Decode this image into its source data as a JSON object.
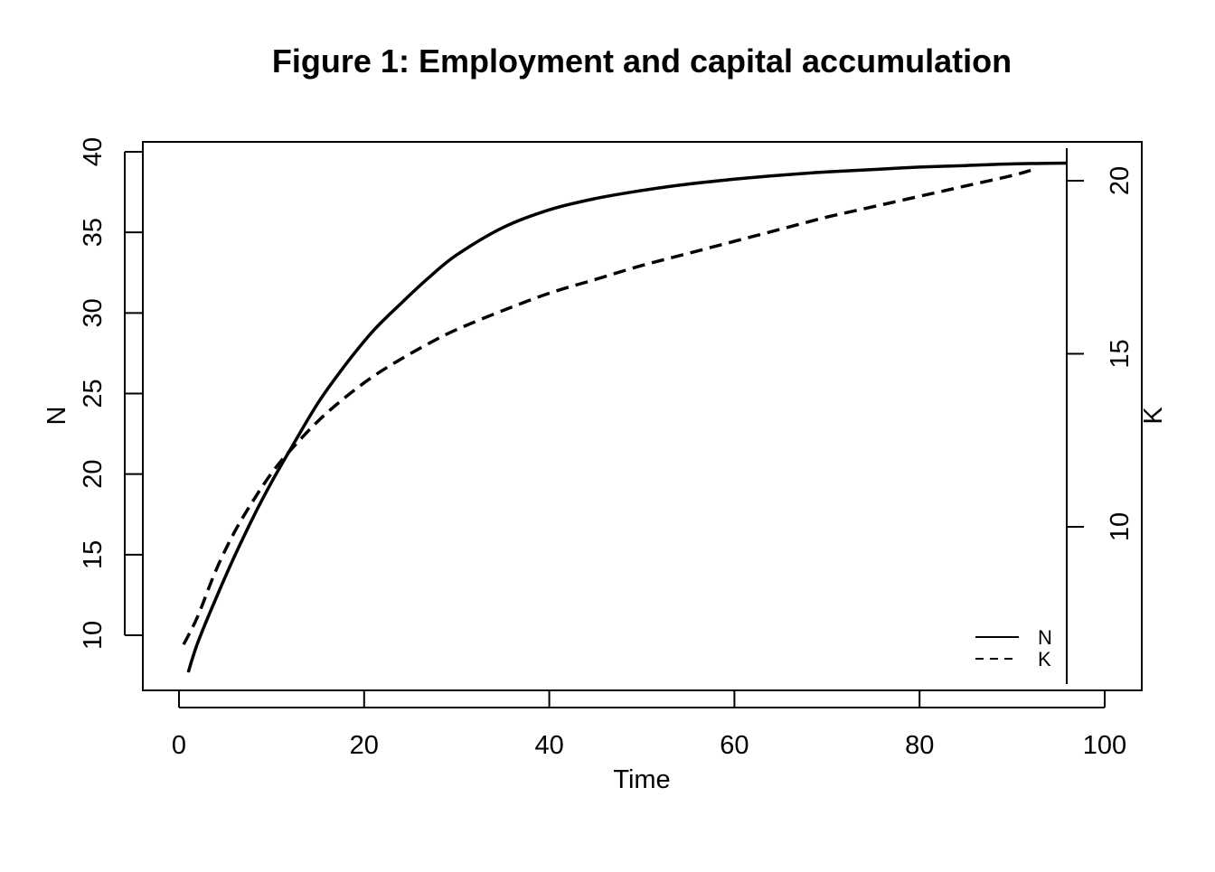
{
  "chart_data": {
    "type": "line",
    "title": "Figure 1: Employment and capital accumulation",
    "xlabel": "Time",
    "ylabel": "N",
    "y2label": "K",
    "xlim": [
      0,
      100
    ],
    "ylim": [
      7,
      40.5
    ],
    "y2lim": [
      6,
      21
    ],
    "x_ticks": [
      "0",
      "20",
      "40",
      "60",
      "80",
      "100"
    ],
    "y_ticks": [
      "10",
      "15",
      "20",
      "25",
      "30",
      "35",
      "40"
    ],
    "y2_ticks": [
      "10",
      "15",
      "20"
    ],
    "grid": false,
    "legend_position": "bottom-right",
    "series": [
      {
        "name": "N",
        "axis": "left",
        "line_style": "solid",
        "x": [
          1,
          2,
          4,
          6,
          8,
          10,
          12,
          15,
          18,
          21,
          24,
          27,
          30,
          35,
          40,
          45,
          50,
          55,
          60,
          65,
          70,
          75,
          80,
          85,
          90,
          96
        ],
        "y": [
          7.7,
          9.5,
          12.3,
          14.9,
          17.3,
          19.5,
          21.5,
          24.4,
          26.8,
          28.9,
          30.6,
          32.2,
          33.6,
          35.3,
          36.4,
          37.1,
          37.6,
          38.0,
          38.3,
          38.55,
          38.75,
          38.9,
          39.05,
          39.15,
          39.25,
          39.3
        ]
      },
      {
        "name": "K",
        "axis": "right",
        "line_style": "dashed",
        "x": [
          0.5,
          2,
          4,
          6,
          8,
          10,
          12,
          15,
          18,
          21,
          24,
          27,
          30,
          35,
          40,
          45,
          50,
          55,
          60,
          65,
          70,
          75,
          80,
          85,
          90,
          92
        ],
        "y": [
          6.6,
          7.4,
          8.75,
          9.85,
          10.75,
          11.55,
          12.2,
          13.05,
          13.75,
          14.35,
          14.85,
          15.3,
          15.7,
          16.25,
          16.75,
          17.15,
          17.55,
          17.9,
          18.25,
          18.6,
          18.95,
          19.25,
          19.55,
          19.85,
          20.15,
          20.3
        ]
      }
    ]
  }
}
